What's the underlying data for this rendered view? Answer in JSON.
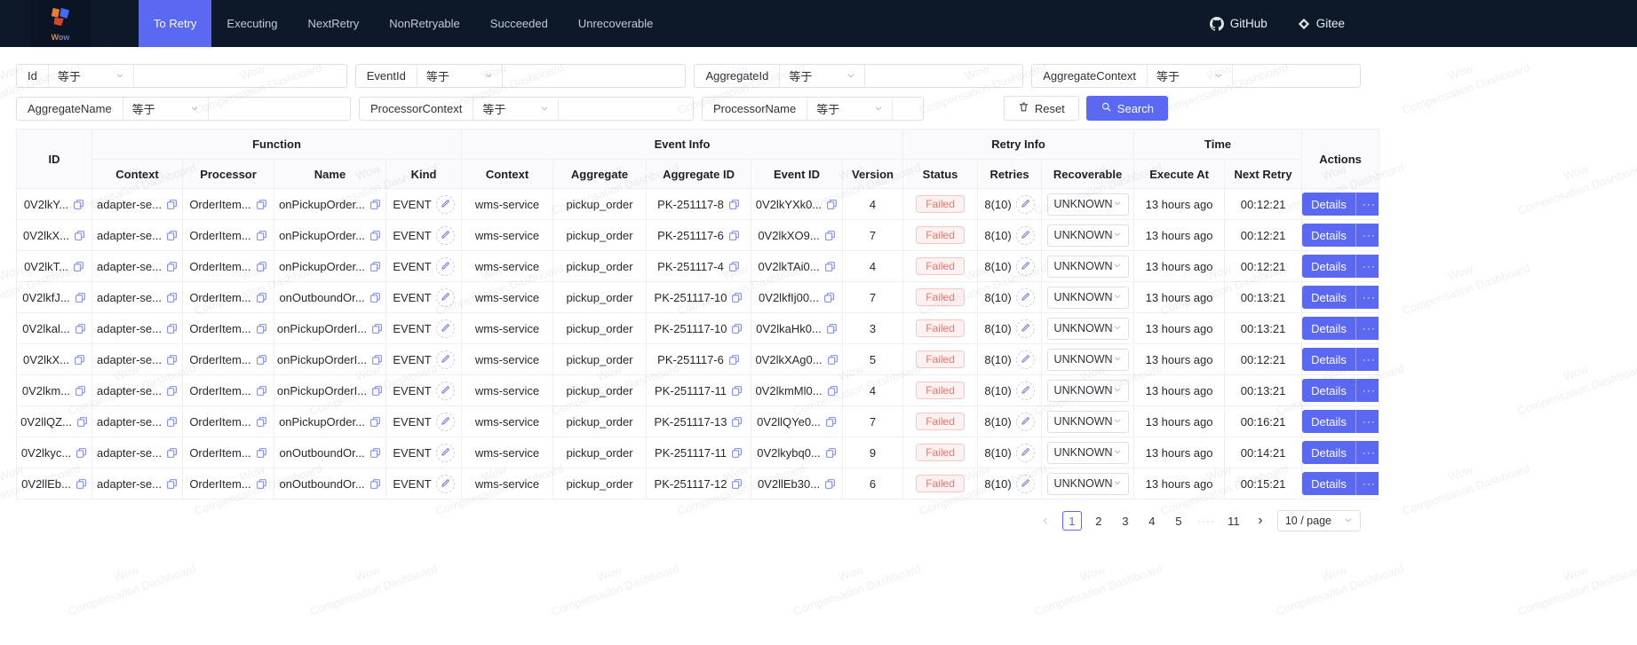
{
  "colors": {
    "accent": "#5b68f2",
    "navbar_bg": "#0d1829",
    "failed_text": "#ef756b",
    "failed_bg": "#fdf2f1",
    "failed_border": "#f9c7c3"
  },
  "navbar": {
    "logo_text": "Wow",
    "tabs": [
      {
        "label": "To Retry",
        "active": true
      },
      {
        "label": "Executing",
        "active": false
      },
      {
        "label": "NextRetry",
        "active": false
      },
      {
        "label": "NonRetryable",
        "active": false
      },
      {
        "label": "Succeeded",
        "active": false
      },
      {
        "label": "Unrecoverable",
        "active": false
      }
    ],
    "links": [
      {
        "label": "GitHub",
        "icon": "github-icon"
      },
      {
        "label": "Gitee",
        "icon": "gitee-icon"
      }
    ]
  },
  "filters": {
    "operator_label": "等于",
    "row1": [
      {
        "label": "Id"
      },
      {
        "label": "EventId"
      },
      {
        "label": "AggregateId"
      },
      {
        "label": "AggregateContext"
      }
    ],
    "row2": [
      {
        "label": "AggregateName"
      },
      {
        "label": "ProcessorContext"
      },
      {
        "label": "ProcessorName"
      }
    ],
    "reset_label": "Reset",
    "search_label": "Search"
  },
  "table": {
    "header_groups": [
      {
        "label": "ID",
        "rowspan": 2
      },
      {
        "label": "Function",
        "colspan": 4
      },
      {
        "label": "Event Info",
        "colspan": 5
      },
      {
        "label": "Retry Info",
        "colspan": 3
      },
      {
        "label": "Time",
        "colspan": 2
      },
      {
        "label": "Actions",
        "rowspan": 2
      }
    ],
    "sub_columns": [
      "Context",
      "Processor",
      "Name",
      "Kind",
      "Context",
      "Aggregate",
      "Aggregate ID",
      "Event ID",
      "Version",
      "Status",
      "Retries",
      "Recoverable",
      "Execute At",
      "Next Retry"
    ],
    "details_label": "Details",
    "more_label": "···",
    "rows": [
      {
        "id": "0V2lkY...",
        "context": "adapter-se...",
        "processor": "OrderItem...",
        "name": "onPickupOrder...",
        "kind": "EVENT",
        "event_context": "wms-service",
        "aggregate": "pickup_order",
        "aggregate_id": "PK-251117-8",
        "event_id": "0V2lkYXk0...",
        "version": "4",
        "status": "Failed",
        "retries": "8(10)",
        "recoverable": "UNKNOWN",
        "execute_at": "13 hours ago",
        "next_retry": "00:12:21"
      },
      {
        "id": "0V2lkX...",
        "context": "adapter-se...",
        "processor": "OrderItem...",
        "name": "onPickupOrder...",
        "kind": "EVENT",
        "event_context": "wms-service",
        "aggregate": "pickup_order",
        "aggregate_id": "PK-251117-6",
        "event_id": "0V2lkXO9...",
        "version": "7",
        "status": "Failed",
        "retries": "8(10)",
        "recoverable": "UNKNOWN",
        "execute_at": "13 hours ago",
        "next_retry": "00:12:21"
      },
      {
        "id": "0V2lkT...",
        "context": "adapter-se...",
        "processor": "OrderItem...",
        "name": "onPickupOrder...",
        "kind": "EVENT",
        "event_context": "wms-service",
        "aggregate": "pickup_order",
        "aggregate_id": "PK-251117-4",
        "event_id": "0V2lkTAi0...",
        "version": "4",
        "status": "Failed",
        "retries": "8(10)",
        "recoverable": "UNKNOWN",
        "execute_at": "13 hours ago",
        "next_retry": "00:12:21"
      },
      {
        "id": "0V2lkfJ...",
        "context": "adapter-se...",
        "processor": "OrderItem...",
        "name": "onOutboundOr...",
        "kind": "EVENT",
        "event_context": "wms-service",
        "aggregate": "pickup_order",
        "aggregate_id": "PK-251117-10",
        "event_id": "0V2lkfIj00...",
        "version": "7",
        "status": "Failed",
        "retries": "8(10)",
        "recoverable": "UNKNOWN",
        "execute_at": "13 hours ago",
        "next_retry": "00:13:21"
      },
      {
        "id": "0V2lkal...",
        "context": "adapter-se...",
        "processor": "OrderItem...",
        "name": "onPickupOrderI...",
        "kind": "EVENT",
        "event_context": "wms-service",
        "aggregate": "pickup_order",
        "aggregate_id": "PK-251117-10",
        "event_id": "0V2lkaHk0...",
        "version": "3",
        "status": "Failed",
        "retries": "8(10)",
        "recoverable": "UNKNOWN",
        "execute_at": "13 hours ago",
        "next_retry": "00:13:21"
      },
      {
        "id": "0V2lkX...",
        "context": "adapter-se...",
        "processor": "OrderItem...",
        "name": "onPickupOrderI...",
        "kind": "EVENT",
        "event_context": "wms-service",
        "aggregate": "pickup_order",
        "aggregate_id": "PK-251117-6",
        "event_id": "0V2lkXAg0...",
        "version": "5",
        "status": "Failed",
        "retries": "8(10)",
        "recoverable": "UNKNOWN",
        "execute_at": "13 hours ago",
        "next_retry": "00:12:21"
      },
      {
        "id": "0V2lkm...",
        "context": "adapter-se...",
        "processor": "OrderItem...",
        "name": "onPickupOrderI...",
        "kind": "EVENT",
        "event_context": "wms-service",
        "aggregate": "pickup_order",
        "aggregate_id": "PK-251117-11",
        "event_id": "0V2lkmMl0...",
        "version": "4",
        "status": "Failed",
        "retries": "8(10)",
        "recoverable": "UNKNOWN",
        "execute_at": "13 hours ago",
        "next_retry": "00:13:21"
      },
      {
        "id": "0V2llQZ...",
        "context": "adapter-se...",
        "processor": "OrderItem...",
        "name": "onPickupOrder...",
        "kind": "EVENT",
        "event_context": "wms-service",
        "aggregate": "pickup_order",
        "aggregate_id": "PK-251117-13",
        "event_id": "0V2llQYe0...",
        "version": "7",
        "status": "Failed",
        "retries": "8(10)",
        "recoverable": "UNKNOWN",
        "execute_at": "13 hours ago",
        "next_retry": "00:16:21"
      },
      {
        "id": "0V2lkyc...",
        "context": "adapter-se...",
        "processor": "OrderItem...",
        "name": "onOutboundOr...",
        "kind": "EVENT",
        "event_context": "wms-service",
        "aggregate": "pickup_order",
        "aggregate_id": "PK-251117-11",
        "event_id": "0V2lkybq0...",
        "version": "9",
        "status": "Failed",
        "retries": "8(10)",
        "recoverable": "UNKNOWN",
        "execute_at": "13 hours ago",
        "next_retry": "00:14:21"
      },
      {
        "id": "0V2llEb...",
        "context": "adapter-se...",
        "processor": "OrderItem...",
        "name": "onOutboundOr...",
        "kind": "EVENT",
        "event_context": "wms-service",
        "aggregate": "pickup_order",
        "aggregate_id": "PK-251117-12",
        "event_id": "0V2llEb30...",
        "version": "6",
        "status": "Failed",
        "retries": "8(10)",
        "recoverable": "UNKNOWN",
        "execute_at": "13 hours ago",
        "next_retry": "00:15:21"
      }
    ]
  },
  "pagination": {
    "prev": "‹",
    "next": "›",
    "pages": [
      "1",
      "2",
      "3",
      "4",
      "5"
    ],
    "ellipsis": "····",
    "last_page": "11",
    "active_page": "1",
    "page_size": "10 / page"
  },
  "watermark": {
    "text": "Wow\nCompensation Dashboard"
  }
}
